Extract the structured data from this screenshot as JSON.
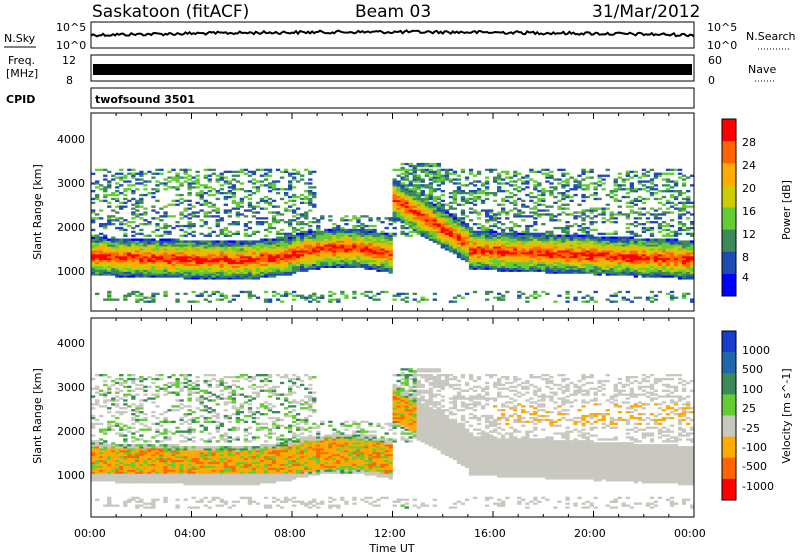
{
  "header": {
    "station": "Saskatoon (fitACF)",
    "beam": "Beam 03",
    "date": "31/Mar/2012"
  },
  "panels": {
    "nsky": {
      "label": "N.Sky",
      "ticks": [
        "10^5",
        "10^0"
      ],
      "right_label": "N.Search",
      "right_ticks": [
        "10^5",
        "10^0"
      ]
    },
    "freq": {
      "label_1": "Freq.",
      "label_2": "[MHz]",
      "left_ticks": [
        "12",
        "8"
      ],
      "right_label": "Nave",
      "right_ticks": [
        "60",
        "0"
      ]
    },
    "cpid": {
      "label": "CPID",
      "value": "twofsound 3501"
    }
  },
  "colors": {
    "power": [
      "#0000ff",
      "#1f4bb4",
      "#3c8a5a",
      "#66cc33",
      "#cccc00",
      "#ffaa00",
      "#ff6600",
      "#ff0000"
    ],
    "velocity": [
      "#1a3ccc",
      "#1f66aa",
      "#3c8a5a",
      "#66cc33",
      "#c8c8c0",
      "#ffaa00",
      "#ff6600",
      "#ff0000"
    ]
  },
  "chart_data": [
    {
      "type": "heatmap",
      "title": "Power",
      "xlabel": "",
      "ylabel": "Slant Range [km]",
      "x_ticks": [
        "00:00",
        "04:00",
        "08:00",
        "12:00",
        "16:00",
        "20:00",
        "00:00"
      ],
      "y_ticks": [
        "1000",
        "2000",
        "3000",
        "4000"
      ],
      "ylim": [
        0,
        4600
      ],
      "xlim": [
        0,
        24
      ],
      "colorbar_label": "Power [dB]",
      "colorbar_ticks": [
        "28",
        "24",
        "20",
        "16",
        "12",
        "8",
        "4"
      ]
    },
    {
      "type": "heatmap",
      "title": "Velocity",
      "xlabel": "Time UT",
      "ylabel": "Slant Range [km]",
      "x_ticks": [
        "00:00",
        "04:00",
        "08:00",
        "12:00",
        "16:00",
        "20:00",
        "00:00"
      ],
      "y_ticks": [
        "1000",
        "2000",
        "3000",
        "4000"
      ],
      "ylim": [
        0,
        4600
      ],
      "xlim": [
        0,
        24
      ],
      "colorbar_label": "Velocity [m s^-1]",
      "colorbar_ticks": [
        "1000",
        "500",
        "100",
        "25",
        "-25",
        "-100",
        "-500",
        "-1000"
      ]
    }
  ]
}
